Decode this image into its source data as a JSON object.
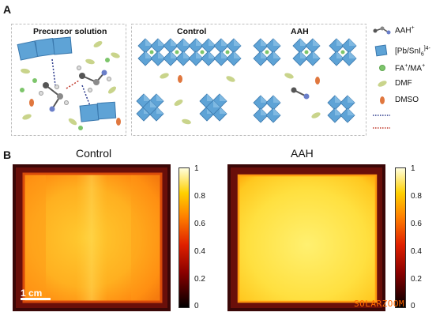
{
  "panel_a": {
    "letter": "A",
    "precursor_title": "Precursor solution",
    "control_title": "Control",
    "aah_title": "AAH",
    "legend": {
      "items": [
        {
          "label": "AAH",
          "sup": "+",
          "icon": "aah-molecule-icon"
        },
        {
          "label": "[Pb/SnI",
          "sub": "6",
          "sup": "]4-",
          "icon": "octahedron-icon"
        },
        {
          "label": "FA",
          "sup": "+",
          "label2": "/MA",
          "sup2": "+",
          "icon": "green-cation-icon"
        },
        {
          "label": "DMF",
          "icon": "dmf-ellipse-icon"
        },
        {
          "label": "DMSO",
          "icon": "dmso-ellipse-icon"
        }
      ],
      "colors": {
        "octahedron": "#5ea3d6",
        "cation": "#7dc56b",
        "dmf": "#c9d48b",
        "dmso": "#e0773e",
        "hbond_blue": "#2b3a8c",
        "hbond_red": "#c0392b"
      }
    }
  },
  "panel_b": {
    "letter": "B",
    "control_title": "Control",
    "aah_title": "AAH",
    "colorbar_ticks": [
      "1",
      "0.8",
      "0.6",
      "0.4",
      "0.2",
      "0"
    ],
    "scale_label": "1 cm"
  },
  "watermark": "SOLARZOOM"
}
